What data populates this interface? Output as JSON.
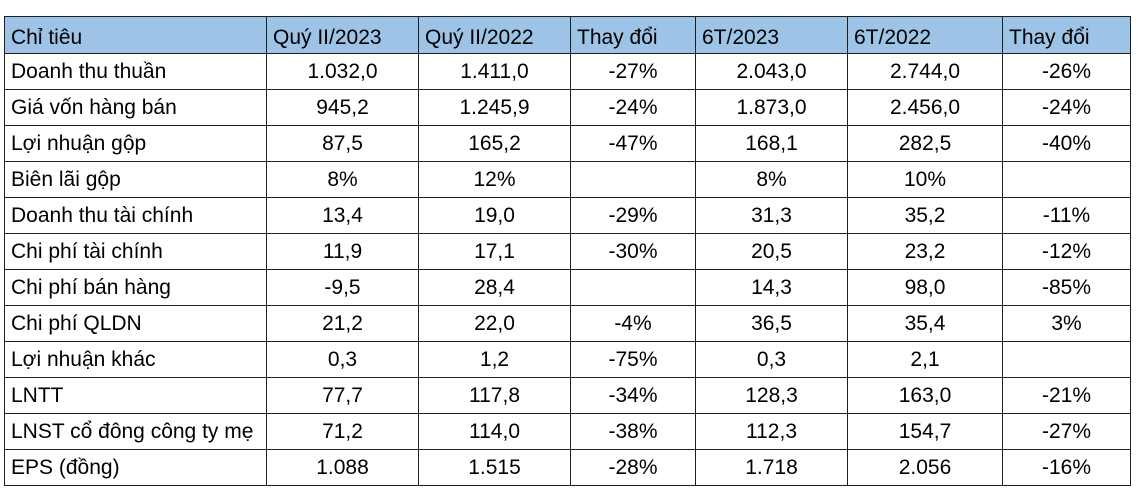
{
  "table": {
    "headers": [
      "Chỉ tiêu",
      "Quý II/2023",
      "Quý II/2022",
      "Thay đổi",
      "6T/2023",
      "6T/2022",
      "Thay đổi"
    ],
    "rows": [
      [
        "Doanh thu thuần",
        "1.032,0",
        "1.411,0",
        "-27%",
        "2.043,0",
        "2.744,0",
        "-26%"
      ],
      [
        "Giá vốn hàng bán",
        "945,2",
        "1.245,9",
        "-24%",
        "1.873,0",
        "2.456,0",
        "-24%"
      ],
      [
        "Lợi nhuận gộp",
        "87,5",
        "165,2",
        "-47%",
        "168,1",
        "282,5",
        "-40%"
      ],
      [
        "Biên lãi gộp",
        "8%",
        "12%",
        "",
        "8%",
        "10%",
        ""
      ],
      [
        "Doanh thu tài chính",
        "13,4",
        "19,0",
        "-29%",
        "31,3",
        "35,2",
        "-11%"
      ],
      [
        "Chi phí tài chính",
        "11,9",
        "17,1",
        "-30%",
        "20,5",
        "23,2",
        "-12%"
      ],
      [
        "Chi phí bán hàng",
        "-9,5",
        "28,4",
        "",
        "14,3",
        "98,0",
        "-85%"
      ],
      [
        "Chi phí QLDN",
        "21,2",
        "22,0",
        "-4%",
        "36,5",
        "35,4",
        "3%"
      ],
      [
        "Lợi nhuận khác",
        "0,3",
        "1,2",
        "-75%",
        "0,3",
        "2,1",
        ""
      ],
      [
        "LNTT",
        "77,7",
        "117,8",
        "-34%",
        "128,3",
        "163,0",
        "-21%"
      ],
      [
        "LNST cổ đông công ty mẹ",
        "71,2",
        "114,0",
        "-38%",
        "112,3",
        "154,7",
        "-27%"
      ],
      [
        "EPS (đồng)",
        "1.088",
        "1.515",
        "-28%",
        "1.718",
        "2.056",
        "-16%"
      ]
    ]
  },
  "colors": {
    "header_background": "#9dc3e6",
    "border": "#1f1f1f",
    "text": "#000000"
  }
}
